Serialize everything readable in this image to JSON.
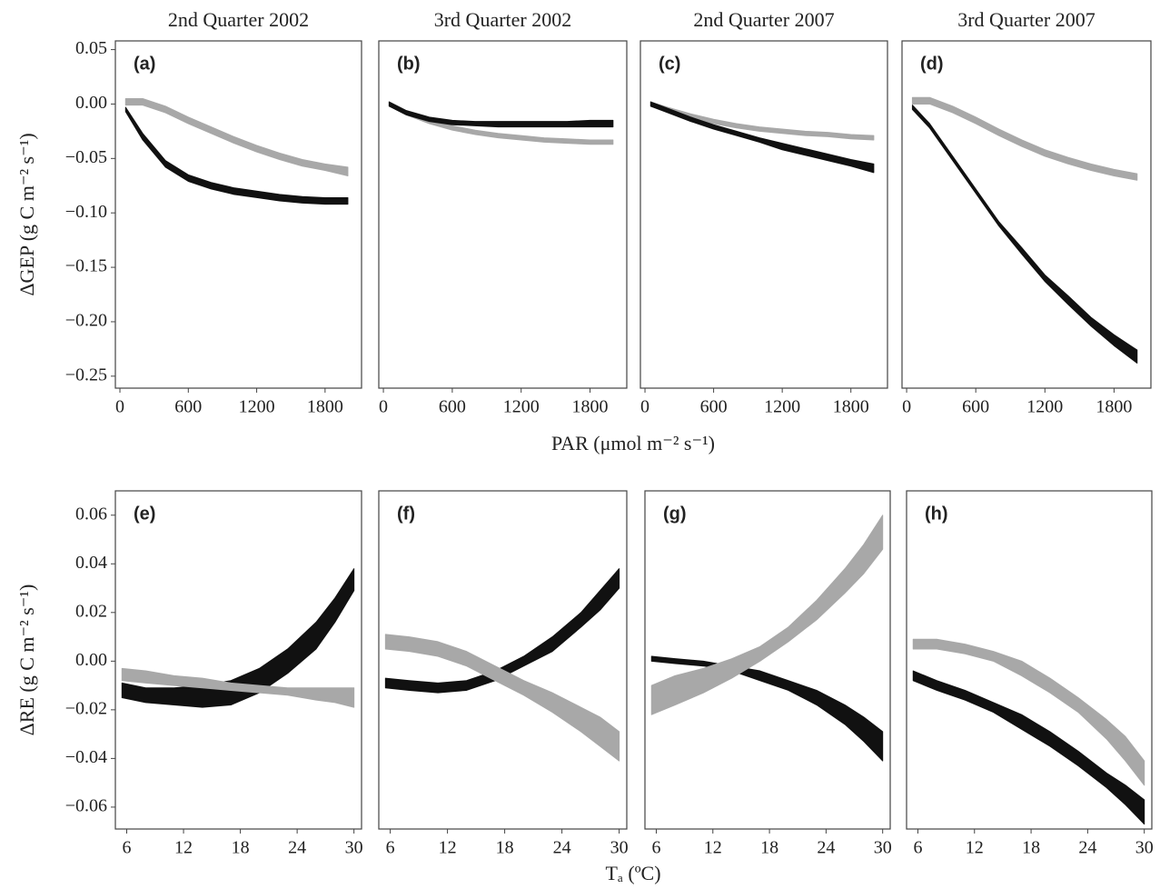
{
  "chart_data": [
    {
      "type": "band",
      "title": "2nd Quarter 2002",
      "panel": "(a)",
      "ylabel": "ΔGEP (g C m⁻² s⁻¹)",
      "xlabel": "PAR (μmol m⁻² s⁻¹)",
      "xlim": [
        -40,
        2120
      ],
      "ylim": [
        -0.261,
        0.058
      ],
      "xticks": [
        0,
        600,
        1200,
        1800
      ],
      "yticks": [
        0.05,
        {
          "value": 0,
          "label": "0.00"
        },
        {
          "value": -0.05,
          "label": "−0.05"
        },
        {
          "value": -0.1,
          "label": "−0.10"
        },
        {
          "value": -0.15,
          "label": "−0.15"
        },
        {
          "value": -0.2,
          "label": "−0.20"
        },
        {
          "value": -0.25,
          "label": "−0.25"
        }
      ],
      "x": [
        50,
        200,
        400,
        600,
        800,
        1000,
        1200,
        1400,
        1600,
        1800,
        2000
      ],
      "series": [
        {
          "color": "#a8a8a8",
          "lower": [
            -0.001,
            -0.001,
            -0.008,
            -0.018,
            -0.027,
            -0.036,
            -0.044,
            -0.051,
            -0.057,
            -0.061,
            -0.066
          ],
          "upper": [
            0.005,
            0.005,
            -0.002,
            -0.012,
            -0.021,
            -0.03,
            -0.038,
            -0.045,
            -0.051,
            -0.055,
            -0.058
          ]
        },
        {
          "color": "#111111",
          "lower": [
            -0.007,
            -0.033,
            -0.058,
            -0.071,
            -0.078,
            -0.083,
            -0.086,
            -0.089,
            -0.091,
            -0.092,
            -0.092
          ],
          "upper": [
            -0.003,
            -0.027,
            -0.052,
            -0.065,
            -0.072,
            -0.077,
            -0.08,
            -0.083,
            -0.085,
            -0.086,
            -0.086
          ]
        }
      ]
    },
    {
      "type": "band",
      "title": "3rd Quarter 2002",
      "panel": "(b)",
      "xlim": [
        -40,
        2120
      ],
      "ylim": [
        -0.261,
        0.058
      ],
      "xticks": [
        0,
        600,
        1200,
        1800
      ],
      "x": [
        50,
        200,
        400,
        600,
        800,
        1000,
        1200,
        1400,
        1600,
        1800,
        2000
      ],
      "series": [
        {
          "color": "#a8a8a8",
          "lower": [
            -0.002,
            -0.01,
            -0.018,
            -0.024,
            -0.028,
            -0.031,
            -0.033,
            -0.035,
            -0.036,
            -0.037,
            -0.037
          ],
          "upper": [
            0.002,
            -0.006,
            -0.014,
            -0.02,
            -0.024,
            -0.027,
            -0.029,
            -0.031,
            -0.032,
            -0.033,
            -0.033
          ]
        },
        {
          "color": "#111111",
          "lower": [
            -0.002,
            -0.01,
            -0.016,
            -0.019,
            -0.02,
            -0.021,
            -0.021,
            -0.021,
            -0.021,
            -0.021,
            -0.021
          ],
          "upper": [
            0.002,
            -0.006,
            -0.012,
            -0.015,
            -0.016,
            -0.016,
            -0.016,
            -0.016,
            -0.016,
            -0.015,
            -0.015
          ]
        }
      ]
    },
    {
      "type": "band",
      "title": "2nd Quarter 2007",
      "panel": "(c)",
      "xlim": [
        -40,
        2120
      ],
      "ylim": [
        -0.261,
        0.058
      ],
      "xticks": [
        0,
        600,
        1200,
        1800
      ],
      "x": [
        50,
        200,
        400,
        600,
        800,
        1000,
        1200,
        1400,
        1600,
        1800,
        2000
      ],
      "series": [
        {
          "color": "#a8a8a8",
          "lower": [
            -0.002,
            -0.007,
            -0.013,
            -0.018,
            -0.022,
            -0.025,
            -0.027,
            -0.029,
            -0.03,
            -0.032,
            -0.033
          ],
          "upper": [
            0.002,
            -0.003,
            -0.009,
            -0.014,
            -0.018,
            -0.021,
            -0.023,
            -0.025,
            -0.026,
            -0.028,
            -0.029
          ]
        },
        {
          "color": "#111111",
          "lower": [
            -0.002,
            -0.008,
            -0.016,
            -0.023,
            -0.029,
            -0.035,
            -0.042,
            -0.047,
            -0.052,
            -0.057,
            -0.063
          ],
          "upper": [
            0.002,
            -0.004,
            -0.012,
            -0.019,
            -0.025,
            -0.031,
            -0.036,
            -0.041,
            -0.046,
            -0.051,
            -0.055
          ]
        }
      ]
    },
    {
      "type": "band",
      "title": "3rd Quarter 2007",
      "panel": "(d)",
      "xlim": [
        -40,
        2120
      ],
      "ylim": [
        -0.261,
        0.058
      ],
      "xticks": [
        0,
        600,
        1200,
        1800
      ],
      "x": [
        50,
        200,
        400,
        600,
        800,
        1000,
        1200,
        1400,
        1600,
        1800,
        2000
      ],
      "series": [
        {
          "color": "#a8a8a8",
          "lower": [
            0,
            0,
            -0.008,
            -0.018,
            -0.029,
            -0.039,
            -0.048,
            -0.055,
            -0.061,
            -0.066,
            -0.07
          ],
          "upper": [
            0.006,
            0.006,
            -0.002,
            -0.012,
            -0.023,
            -0.033,
            -0.042,
            -0.049,
            -0.055,
            -0.06,
            -0.064
          ]
        },
        {
          "color": "#111111",
          "lower": [
            -0.005,
            -0.022,
            -0.052,
            -0.082,
            -0.112,
            -0.138,
            -0.163,
            -0.184,
            -0.204,
            -0.222,
            -0.238
          ],
          "upper": [
            -0.001,
            -0.018,
            -0.048,
            -0.078,
            -0.108,
            -0.132,
            -0.157,
            -0.176,
            -0.196,
            -0.212,
            -0.226
          ]
        }
      ]
    },
    {
      "type": "band",
      "panel": "(e)",
      "ylabel": "ΔRE (g C m⁻² s⁻¹)",
      "xlabel": "Tₐ (ºC)",
      "xlim": [
        4.8,
        30.8
      ],
      "ylim": [
        -0.069,
        0.07
      ],
      "xticks": [
        6,
        12,
        18,
        24,
        30
      ],
      "yticks": [
        0.06,
        0.04,
        0.02,
        {
          "value": 0,
          "label": "0.00"
        },
        {
          "value": -0.02,
          "label": "−0.02"
        },
        {
          "value": -0.04,
          "label": "−0.04"
        },
        {
          "value": -0.06,
          "label": "−0.06"
        }
      ],
      "x": [
        5.5,
        8,
        11,
        14,
        17,
        20,
        23,
        26,
        28,
        30
      ],
      "series": [
        {
          "color": "#111111",
          "lower": [
            -0.015,
            -0.017,
            -0.018,
            -0.019,
            -0.018,
            -0.013,
            -0.005,
            0.005,
            0.016,
            0.029
          ],
          "upper": [
            -0.009,
            -0.011,
            -0.011,
            -0.01,
            -0.008,
            -0.003,
            0.005,
            0.016,
            0.026,
            0.038
          ]
        },
        {
          "color": "#a8a8a8",
          "lower": [
            -0.008,
            -0.009,
            -0.01,
            -0.011,
            -0.012,
            -0.013,
            -0.014,
            -0.016,
            -0.017,
            -0.019
          ],
          "upper": [
            -0.003,
            -0.004,
            -0.006,
            -0.007,
            -0.009,
            -0.01,
            -0.011,
            -0.011,
            -0.011,
            -0.011
          ]
        }
      ]
    },
    {
      "type": "band",
      "panel": "(f)",
      "xlim": [
        4.8,
        30.8
      ],
      "ylim": [
        -0.069,
        0.07
      ],
      "xticks": [
        6,
        12,
        18,
        24,
        30
      ],
      "x": [
        5.5,
        8,
        11,
        14,
        17,
        20,
        23,
        26,
        28,
        30
      ],
      "series": [
        {
          "color": "#111111",
          "lower": [
            -0.011,
            -0.012,
            -0.013,
            -0.012,
            -0.008,
            -0.002,
            0.004,
            0.014,
            0.021,
            0.03
          ],
          "upper": [
            -0.007,
            -0.008,
            -0.009,
            -0.008,
            -0.004,
            0.002,
            0.01,
            0.02,
            0.029,
            0.038
          ]
        },
        {
          "color": "#a8a8a8",
          "lower": [
            0.005,
            0.004,
            0.002,
            -0.002,
            -0.008,
            -0.014,
            -0.021,
            -0.029,
            -0.035,
            -0.041
          ],
          "upper": [
            0.011,
            0.01,
            0.008,
            0.004,
            -0.002,
            -0.008,
            -0.013,
            -0.019,
            -0.023,
            -0.029
          ]
        }
      ]
    },
    {
      "type": "band",
      "panel": "(g)",
      "xlim": [
        4.8,
        30.8
      ],
      "ylim": [
        -0.069,
        0.07
      ],
      "xticks": [
        6,
        12,
        18,
        24,
        30
      ],
      "x": [
        5.5,
        8,
        11,
        14,
        17,
        20,
        23,
        26,
        28,
        30
      ],
      "series": [
        {
          "color": "#111111",
          "lower": [
            0,
            -0.001,
            -0.002,
            -0.004,
            -0.008,
            -0.012,
            -0.018,
            -0.026,
            -0.033,
            -0.041
          ],
          "upper": [
            0.002,
            0.001,
            0,
            -0.002,
            -0.004,
            -0.008,
            -0.012,
            -0.018,
            -0.023,
            -0.029
          ]
        },
        {
          "color": "#a8a8a8",
          "lower": [
            -0.022,
            -0.018,
            -0.013,
            -0.007,
            0,
            0.008,
            0.017,
            0.028,
            0.036,
            0.046
          ],
          "upper": [
            -0.01,
            -0.006,
            -0.003,
            0.001,
            0.006,
            0.014,
            0.025,
            0.038,
            0.048,
            0.06
          ]
        }
      ]
    },
    {
      "type": "band",
      "panel": "(h)",
      "xlim": [
        4.8,
        30.8
      ],
      "ylim": [
        -0.069,
        0.07
      ],
      "xticks": [
        6,
        12,
        18,
        24,
        30
      ],
      "x": [
        5.5,
        8,
        11,
        14,
        17,
        20,
        23,
        26,
        28,
        30
      ],
      "series": [
        {
          "color": "#111111",
          "lower": [
            -0.008,
            -0.012,
            -0.016,
            -0.021,
            -0.028,
            -0.035,
            -0.043,
            -0.052,
            -0.059,
            -0.067
          ],
          "upper": [
            -0.004,
            -0.008,
            -0.012,
            -0.017,
            -0.022,
            -0.029,
            -0.037,
            -0.046,
            -0.051,
            -0.057
          ]
        },
        {
          "color": "#a8a8a8",
          "lower": [
            0.005,
            0.005,
            0.003,
            0,
            -0.006,
            -0.013,
            -0.021,
            -0.032,
            -0.041,
            -0.051
          ],
          "upper": [
            0.009,
            0.009,
            0.007,
            0.004,
            0,
            -0.007,
            -0.015,
            -0.024,
            -0.031,
            -0.041
          ]
        }
      ]
    }
  ]
}
